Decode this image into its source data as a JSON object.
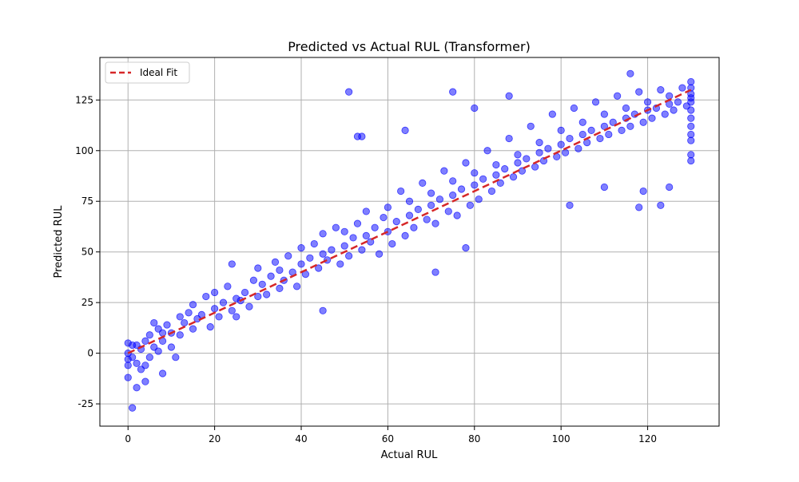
{
  "chart_data": {
    "type": "scatter",
    "title": "Predicted vs Actual RUL (Transformer)",
    "xlabel": "Actual RUL",
    "ylabel": "Predicted RUL",
    "xlim": [
      -6.5,
      136.5
    ],
    "ylim": [
      -36,
      146
    ],
    "xticks": [
      0,
      20,
      40,
      60,
      80,
      100,
      120
    ],
    "yticks": [
      -25,
      0,
      25,
      50,
      75,
      100,
      125
    ],
    "grid": true,
    "legend": {
      "placement": "top-left"
    },
    "series": [
      {
        "type": "line",
        "name": "Ideal Fit",
        "style": "dashed",
        "color": "#d62728",
        "x": [
          0,
          130
        ],
        "y": [
          0,
          130
        ]
      },
      {
        "type": "scatter",
        "color": "#0000ff",
        "alpha": 0.5,
        "x": [
          0,
          0,
          0,
          0,
          0,
          1,
          1,
          2,
          2,
          3,
          3,
          4,
          4,
          5,
          5,
          6,
          6,
          7,
          7,
          8,
          8,
          9,
          10,
          10,
          11,
          12,
          12,
          13,
          14,
          15,
          15,
          16,
          17,
          18,
          19,
          20,
          20,
          21,
          22,
          23,
          24,
          25,
          25,
          26,
          27,
          28,
          29,
          30,
          30,
          31,
          32,
          33,
          34,
          35,
          35,
          36,
          37,
          38,
          39,
          40,
          40,
          41,
          42,
          43,
          44,
          45,
          45,
          46,
          47,
          48,
          49,
          50,
          50,
          51,
          52,
          53,
          54,
          55,
          55,
          56,
          57,
          58,
          59,
          60,
          60,
          61,
          62,
          63,
          64,
          65,
          65,
          66,
          67,
          68,
          69,
          70,
          70,
          71,
          72,
          73,
          74,
          75,
          75,
          76,
          77,
          78,
          79,
          80,
          80,
          81,
          82,
          83,
          84,
          85,
          85,
          86,
          87,
          88,
          89,
          90,
          90,
          91,
          92,
          93,
          94,
          95,
          95,
          96,
          97,
          98,
          99,
          100,
          100,
          101,
          102,
          103,
          104,
          105,
          105,
          106,
          107,
          108,
          109,
          110,
          110,
          111,
          112,
          113,
          114,
          115,
          115,
          116,
          117,
          118,
          119,
          120,
          120,
          121,
          122,
          123,
          124,
          125,
          125,
          126,
          127,
          128,
          129,
          130,
          130,
          130,
          130,
          130,
          130,
          130,
          130,
          130,
          130,
          130,
          130,
          1,
          2,
          4,
          8,
          24,
          45,
          51,
          53,
          54,
          64,
          71,
          75,
          78,
          80,
          88,
          102,
          110,
          116,
          118,
          119,
          123,
          125
        ],
        "y": [
          -12,
          -6,
          0,
          5,
          -3,
          -27,
          4,
          -17,
          -5,
          2,
          -8,
          -14,
          6,
          -2,
          9,
          15,
          3,
          1,
          12,
          -10,
          6,
          14,
          3,
          10,
          -2,
          18,
          9,
          15,
          20,
          12,
          24,
          17,
          19,
          28,
          13,
          22,
          30,
          18,
          25,
          33,
          21,
          27,
          18,
          26,
          30,
          23,
          36,
          28,
          42,
          34,
          29,
          38,
          45,
          32,
          41,
          36,
          48,
          40,
          33,
          44,
          52,
          39,
          47,
          54,
          42,
          49,
          59,
          46,
          51,
          62,
          44,
          53,
          60,
          48,
          57,
          64,
          51,
          58,
          70,
          55,
          62,
          49,
          67,
          60,
          72,
          54,
          65,
          80,
          58,
          68,
          75,
          62,
          71,
          84,
          66,
          73,
          79,
          64,
          76,
          90,
          70,
          78,
          85,
          68,
          81,
          94,
          73,
          83,
          89,
          76,
          86,
          100,
          80,
          88,
          93,
          84,
          91,
          106,
          87,
          94,
          98,
          90,
          96,
          112,
          92,
          99,
          104,
          95,
          101,
          118,
          97,
          103,
          110,
          99,
          106,
          121,
          101,
          108,
          114,
          104,
          110,
          124,
          106,
          112,
          118,
          108,
          114,
          127,
          110,
          116,
          121,
          112,
          118,
          129,
          114,
          120,
          124,
          116,
          121,
          130,
          118,
          123,
          127,
          120,
          124,
          131,
          122,
          126,
          134,
          128,
          120,
          112,
          105,
          98,
          95,
          116,
          124,
          131,
          108,
          -2,
          4,
          -6,
          10,
          44,
          21,
          129,
          107,
          107,
          110,
          40,
          129,
          52,
          121,
          127,
          73,
          82,
          138,
          72,
          80,
          73,
          82
        ]
      }
    ]
  }
}
